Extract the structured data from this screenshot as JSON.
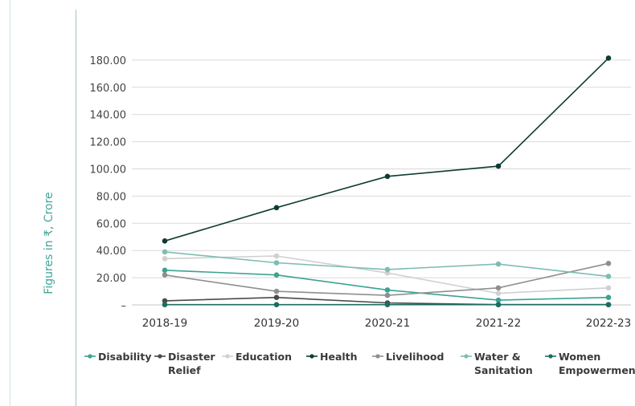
{
  "chart_data": {
    "type": "line",
    "ylabel": "Figures in ₹, Crore",
    "x": [
      "2018-19",
      "2019-20",
      "2020-21",
      "2021-22",
      "2022-23"
    ],
    "y_ticks": [
      "–",
      "20.00",
      "40.00",
      "60.00",
      "80.00",
      "100.00",
      "120.00",
      "140.00",
      "160.00",
      "180.00"
    ],
    "ylim": [
      0,
      200
    ],
    "grid": true,
    "legend_position": "bottom",
    "series": [
      {
        "name": "Disability",
        "legend_lines": [
          "Disability"
        ],
        "color": "#3aa391",
        "values": [
          25.5,
          22.0,
          11.0,
          3.5,
          5.5
        ]
      },
      {
        "name": "Disaster Relief",
        "legend_lines": [
          "Disaster",
          "Relief"
        ],
        "color": "#4a4a4a",
        "values": [
          3.0,
          5.5,
          1.5,
          0.2,
          0.2
        ]
      },
      {
        "name": "Education",
        "legend_lines": [
          "Education"
        ],
        "color": "#d0d0d0",
        "values": [
          34.0,
          36.0,
          23.5,
          8.5,
          12.5
        ]
      },
      {
        "name": "Health",
        "legend_lines": [
          "Health"
        ],
        "color": "#0e3b34",
        "values": [
          47.0,
          71.5,
          94.5,
          102.0,
          181.5
        ]
      },
      {
        "name": "Livelihood",
        "legend_lines": [
          "Livelihood"
        ],
        "color": "#8f8f8f",
        "values": [
          22.0,
          10.0,
          7.0,
          12.5,
          30.5
        ]
      },
      {
        "name": "Water & Sanitation",
        "legend_lines": [
          "Water &",
          "Sanitation"
        ],
        "color": "#7dbdb3",
        "values": [
          39.0,
          31.0,
          26.0,
          30.0,
          21.0
        ]
      },
      {
        "name": "Women Empowerment",
        "legend_lines": [
          "Women",
          "Empowerment"
        ],
        "color": "#1a6e61",
        "values": [
          0.2,
          0.2,
          0.2,
          0.2,
          0.2
        ]
      }
    ]
  }
}
